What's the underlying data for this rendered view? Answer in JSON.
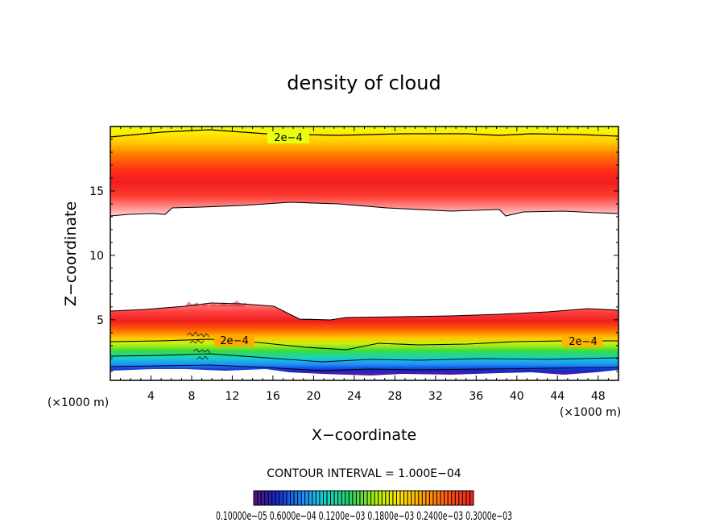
{
  "chart_data": {
    "type": "contour",
    "title": "density of cloud",
    "xlabel": "X−coordinate",
    "ylabel": "Z−coordinate",
    "x_unit_left": "(×1000 m)",
    "x_unit_right": "(×1000 m)",
    "xlim": [
      0,
      50
    ],
    "ylim": [
      0.3,
      20
    ],
    "x_ticks": [
      4,
      8,
      12,
      16,
      20,
      24,
      28,
      32,
      36,
      40,
      44,
      48
    ],
    "x_tick_labels": [
      "4",
      "8",
      "12",
      "16",
      "20",
      "24",
      "28",
      "32",
      "36",
      "40",
      "44",
      "48"
    ],
    "y_ticks": [
      5,
      10,
      15
    ],
    "y_tick_labels": [
      "5",
      "10",
      "15"
    ],
    "contour_interval_text": "CONTOUR INTERVAL = 1.000E−04",
    "contour_labels": [
      "2e−4",
      "2e−4",
      "2e−4"
    ],
    "colorbar_text": "0.10000e−05 0.6000e−04 0.1200e−03 0.1800e−03 0.2400e−03 0.3000e−03",
    "colorbar_colors": [
      "#5a0f7d",
      "#1428c8",
      "#1e8cff",
      "#14d2d2",
      "#28d264",
      "#78e628",
      "#d2f00a",
      "#ffdc00",
      "#ffaa00",
      "#ff7800",
      "#ff3c1e",
      "#f01e1e"
    ],
    "layers": [
      {
        "name": "upper",
        "z_bottom": 13.4,
        "z_top": 19.3,
        "peak_z": 15.2
      },
      {
        "name": "lower",
        "z_bottom": 1.0,
        "z_top": 5.5,
        "peak_z": 4.4
      }
    ]
  }
}
